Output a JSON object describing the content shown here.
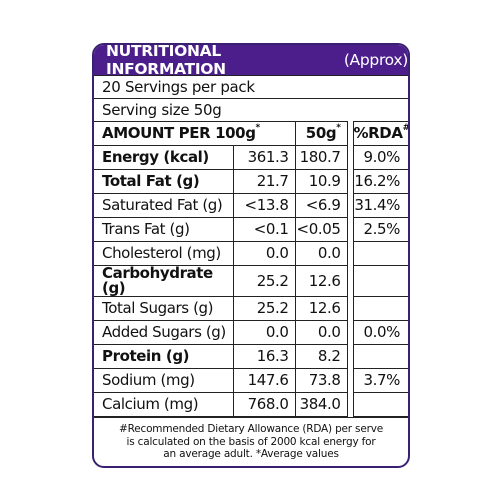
{
  "header": {
    "title_main": "NUTRITIONAL INFORMATION",
    "title_sub": "(Approx)"
  },
  "info": {
    "servings": "20 Servings per pack",
    "serving_size": "Serving size 50g"
  },
  "table": {
    "head": {
      "col1": "AMOUNT PER  100g",
      "col1_sup": "*",
      "col2": "50g",
      "col2_sup": "*",
      "col3": "%RDA",
      "col3_sup": "#"
    },
    "rows": [
      {
        "name": "Energy (kcal)",
        "per100": "361.3",
        "per50": "180.7",
        "rda": "9.0%",
        "bold": true
      },
      {
        "name": "Total Fat (g)",
        "per100": "21.7",
        "per50": "10.9",
        "rda": "16.2%",
        "bold": true
      },
      {
        "name": "Saturated Fat (g)",
        "per100": "<13.8",
        "per50": "<6.9",
        "rda": "31.4%",
        "bold": false
      },
      {
        "name": "Trans Fat (g)",
        "per100": "<0.1",
        "per50": "<0.05",
        "rda": "2.5%",
        "bold": false
      },
      {
        "name": "Cholesterol (mg)",
        "per100": "0.0",
        "per50": "0.0",
        "rda": "",
        "bold": false
      },
      {
        "name": "Carbohydrate (g)",
        "per100": "25.2",
        "per50": "12.6",
        "rda": "",
        "bold": true
      },
      {
        "name": "Total Sugars (g)",
        "per100": "25.2",
        "per50": "12.6",
        "rda": "",
        "bold": false
      },
      {
        "name": "Added Sugars (g)",
        "per100": "0.0",
        "per50": "0.0",
        "rda": "0.0%",
        "bold": false
      },
      {
        "name": "Protein (g)",
        "per100": "16.3",
        "per50": "8.2",
        "rda": "",
        "bold": true
      },
      {
        "name": "Sodium (mg)",
        "per100": "147.6",
        "per50": "73.8",
        "rda": "3.7%",
        "bold": false
      },
      {
        "name": "Calcium (mg)",
        "per100": "768.0",
        "per50": "384.0",
        "rda": "",
        "bold": false
      }
    ]
  },
  "footnote": {
    "line1": "#Recommended Dietary Allowance (RDA) per serve",
    "line2": "is calculated on the basis of 2000 kcal energy for",
    "line3": "an average adult.   *Average values"
  },
  "colors": {
    "header_bg": "#4b1e8c",
    "border": "#222222"
  }
}
